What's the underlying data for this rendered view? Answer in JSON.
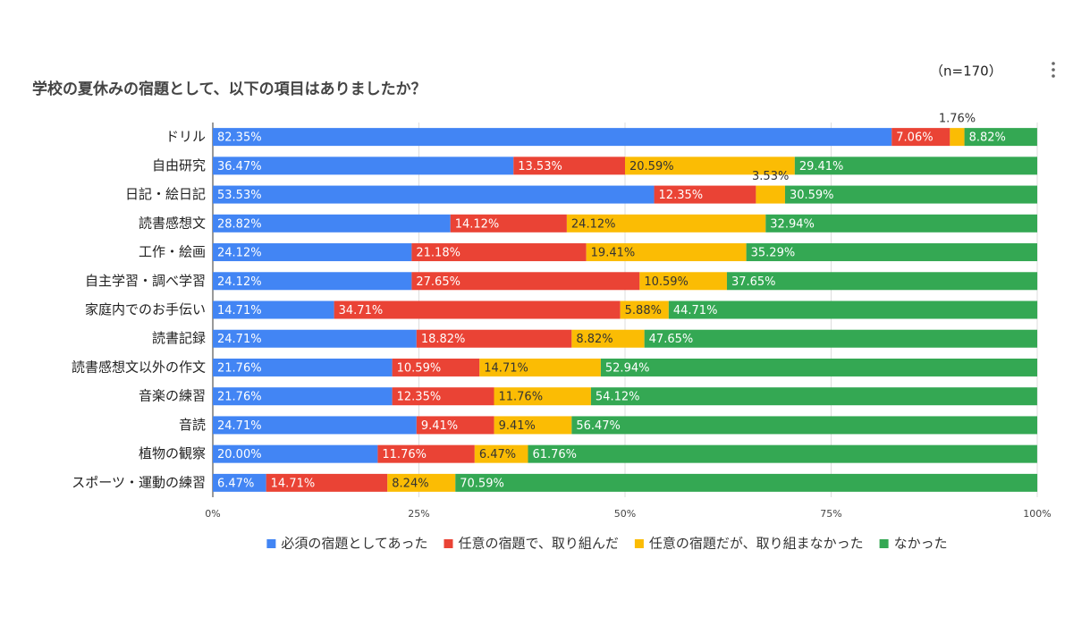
{
  "chart_data": {
    "type": "stacked-bar-horizontal",
    "title": "学校の夏休みの宿題として、以下の項目はありましたか？",
    "annotation": "（n=170）",
    "categories": [
      "ドリル",
      "自由研究",
      "日記・絵日記",
      "読書感想文",
      "工作・絵画",
      "自主学習・調べ学習",
      "家庭内でのお手伝い",
      "読書記録",
      "読書感想文以外の作文",
      "音楽の練習",
      "音読",
      "植物の観察",
      "スポーツ・運動の練習"
    ],
    "series": [
      {
        "name": "必須の宿題としてあった",
        "color": "#4285f4",
        "values": [
          82.35,
          36.47,
          53.53,
          28.82,
          24.12,
          24.12,
          14.71,
          24.71,
          21.76,
          21.76,
          24.71,
          20.0,
          6.47
        ],
        "value_labels": [
          "82.35%",
          "36.47%",
          "53.53%",
          "28.82%",
          "24.12%",
          "24.12%",
          "14.71%",
          "24.71%",
          "21.76%",
          "21.76%",
          "24.71%",
          "20.00%",
          "6.47%"
        ]
      },
      {
        "name": "任意の宿題で、取り組んだ",
        "color": "#ea4335",
        "values": [
          7.06,
          13.53,
          12.35,
          14.12,
          21.18,
          27.65,
          34.71,
          18.82,
          10.59,
          12.35,
          9.41,
          11.76,
          14.71
        ],
        "value_labels": [
          "7.06%",
          "13.53%",
          "12.35%",
          "14.12%",
          "21.18%",
          "27.65%",
          "34.71%",
          "18.82%",
          "10.59%",
          "12.35%",
          "9.41%",
          "11.76%",
          "14.71%"
        ]
      },
      {
        "name": "任意の宿題だが、取り組まなかった",
        "color": "#fbbc04",
        "values": [
          1.76,
          20.59,
          3.53,
          24.12,
          19.41,
          10.59,
          5.88,
          8.82,
          14.71,
          11.76,
          9.41,
          6.47,
          8.24
        ],
        "value_labels": [
          "1.76%",
          "20.59%",
          "3.53%",
          "24.12%",
          "19.41%",
          "10.59%",
          "5.88%",
          "8.82%",
          "14.71%",
          "11.76%",
          "9.41%",
          "6.47%",
          "8.24%"
        ]
      },
      {
        "name": "なかった",
        "color": "#34a853",
        "values": [
          8.82,
          29.41,
          30.59,
          32.94,
          35.29,
          37.65,
          44.71,
          47.65,
          52.94,
          54.12,
          56.47,
          61.76,
          70.59
        ],
        "value_labels": [
          "8.82%",
          "29.41%",
          "30.59%",
          "32.94%",
          "35.29%",
          "37.65%",
          "44.71%",
          "47.65%",
          "52.94%",
          "54.12%",
          "56.47%",
          "61.76%",
          "70.59%"
        ]
      }
    ],
    "xlim": [
      0,
      100
    ],
    "xticks": [
      {
        "value": 0,
        "label": "0%"
      },
      {
        "value": 25,
        "label": "25%"
      },
      {
        "value": 50,
        "label": "50%"
      },
      {
        "value": 75,
        "label": "75%"
      },
      {
        "value": 100,
        "label": "100%"
      }
    ],
    "grid": true,
    "legend": "bottom"
  }
}
